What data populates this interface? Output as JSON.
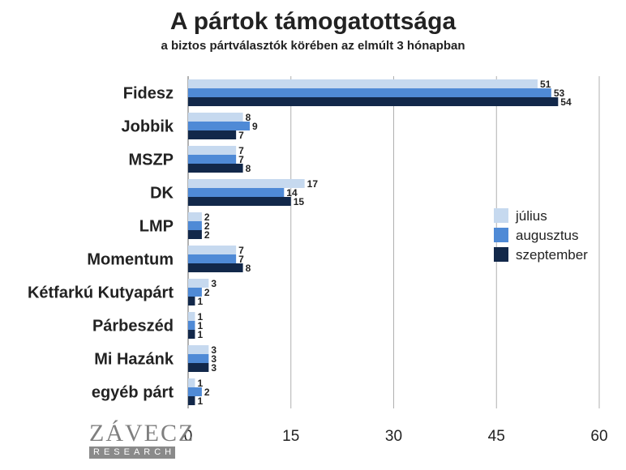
{
  "chart_data": {
    "type": "bar",
    "orientation": "horizontal",
    "title": "A pártok támogatottsága",
    "subtitle": "a biztos pártválasztók körében az elmúlt 3 hónapban",
    "categories": [
      "Fidesz",
      "Jobbik",
      "MSZP",
      "DK",
      "LMP",
      "Momentum",
      "Kétfarkú Kutyapárt",
      "Párbeszéd",
      "Mi Hazánk",
      "egyéb párt"
    ],
    "series": [
      {
        "name": "július",
        "color": "#c6d9ef",
        "values": [
          51,
          8,
          7,
          17,
          2,
          7,
          3,
          1,
          3,
          1
        ]
      },
      {
        "name": "augusztus",
        "color": "#4f8ad6",
        "values": [
          53,
          9,
          7,
          14,
          2,
          7,
          2,
          1,
          3,
          2
        ]
      },
      {
        "name": "szeptember",
        "color": "#12284a",
        "values": [
          54,
          7,
          8,
          15,
          2,
          8,
          1,
          1,
          3,
          1
        ]
      }
    ],
    "xlim": [
      0,
      60
    ],
    "xticks": [
      "0",
      "15",
      "30",
      "45",
      "60"
    ],
    "grid": true,
    "legend_position": "right"
  },
  "logo": {
    "main": "ZÁVECZ",
    "sub": "RESEARCH"
  }
}
